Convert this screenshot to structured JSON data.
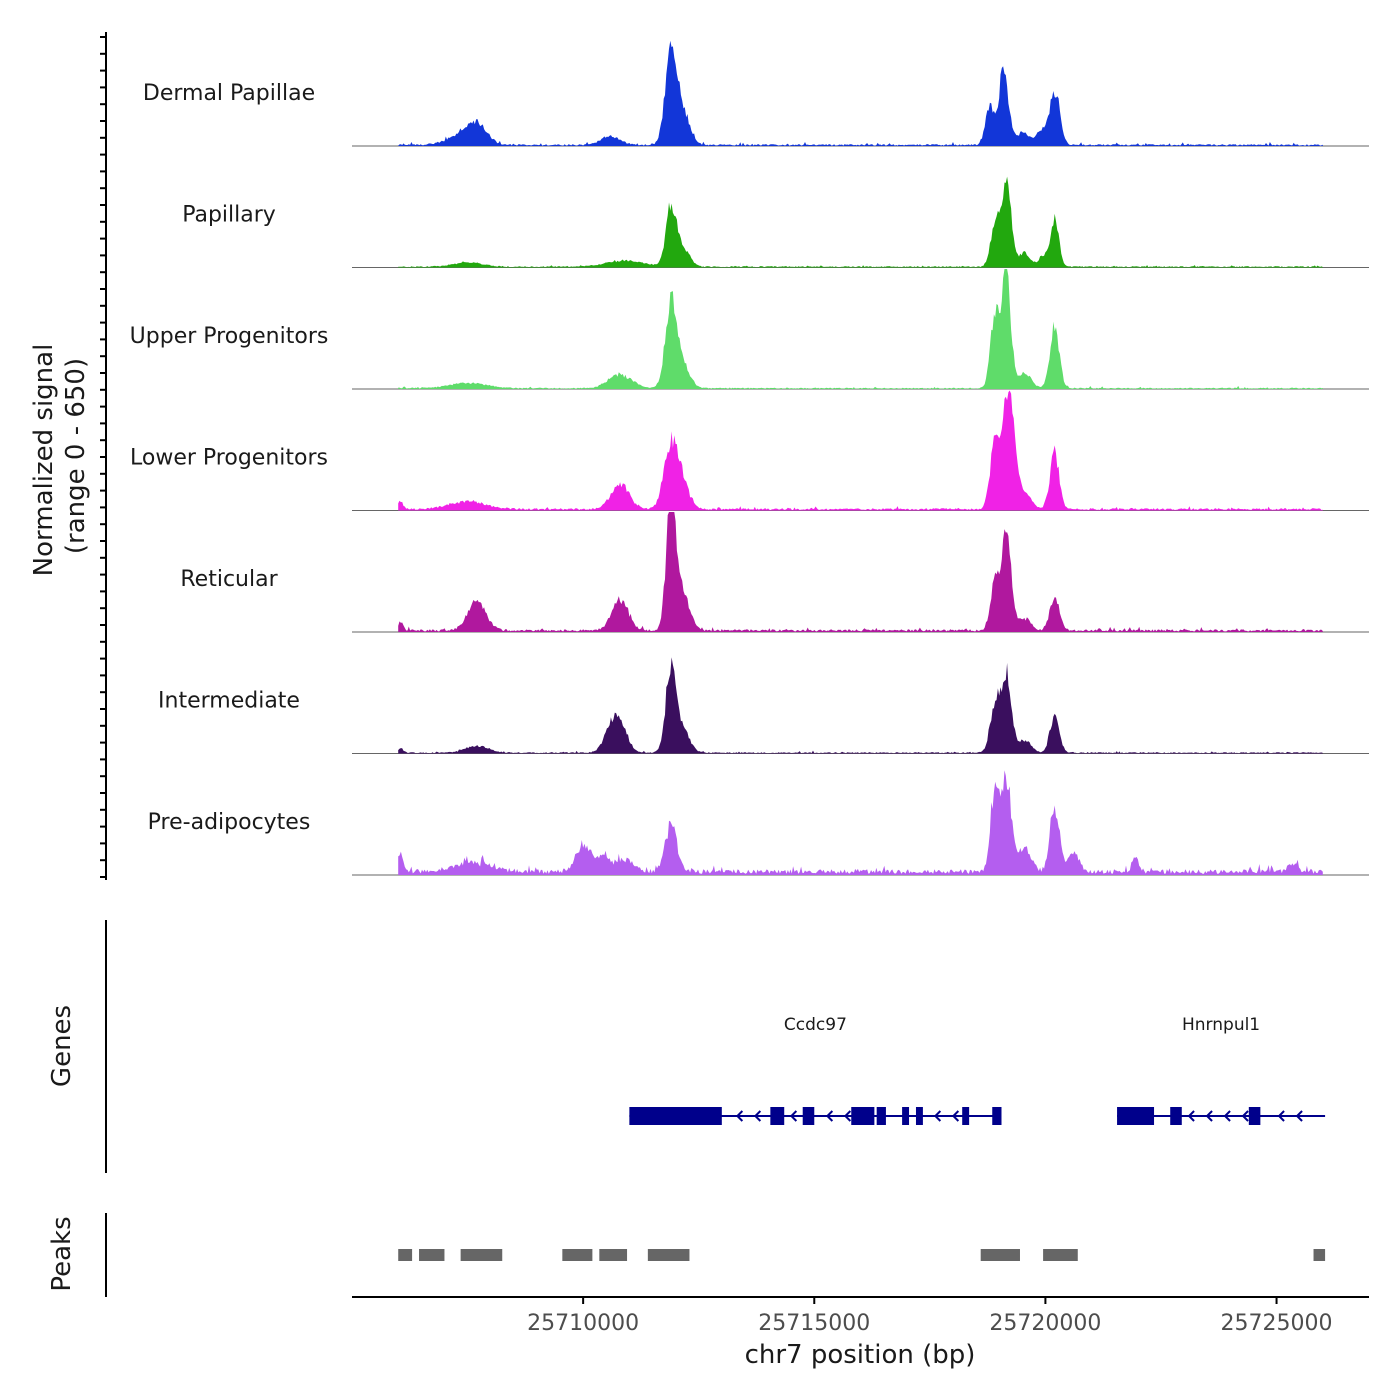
{
  "chart_data": {
    "type": "area",
    "title": "",
    "ylabel": "Normalized signal",
    "ylabel_sub": "(range 0 - 650)",
    "ylim": [
      0,
      650
    ],
    "xlabel": "chr7 position (bp)",
    "xlim": [
      25705000,
      25727000
    ],
    "xticks": [
      {
        "value": 25710000,
        "label": "25710000"
      },
      {
        "value": 25715000,
        "label": "25715000"
      },
      {
        "value": 25720000,
        "label": "25720000"
      },
      {
        "value": 25725000,
        "label": "25725000"
      }
    ],
    "track_range": [
      25706000,
      25726000
    ],
    "series": [
      {
        "name": "Dermal Papillae",
        "color": "#1236d8",
        "baseline": 8,
        "peaks": [
          [
            25707700,
            130,
            220
          ],
          [
            25707300,
            50,
            300
          ],
          [
            25711900,
            620,
            120
          ],
          [
            25712150,
            220,
            150
          ],
          [
            25718800,
            260,
            90
          ],
          [
            25719100,
            500,
            100
          ],
          [
            25719500,
            80,
            150
          ],
          [
            25720200,
            360,
            110
          ],
          [
            25719900,
            90,
            100
          ],
          [
            25710600,
            60,
            200
          ]
        ]
      },
      {
        "name": "Papillary",
        "color": "#22a80e",
        "baseline": 6,
        "peaks": [
          [
            25711900,
            380,
            110
          ],
          [
            25712150,
            120,
            150
          ],
          [
            25718900,
            250,
            90
          ],
          [
            25719150,
            560,
            110
          ],
          [
            25719550,
            90,
            120
          ],
          [
            25720200,
            320,
            90
          ],
          [
            25719950,
            70,
            90
          ],
          [
            25707500,
            30,
            300
          ],
          [
            25710900,
            40,
            400
          ]
        ]
      },
      {
        "name": "Upper Progenitors",
        "color": "#5fdc6a",
        "baseline": 6,
        "peaks": [
          [
            25711900,
            560,
            120
          ],
          [
            25712150,
            150,
            150
          ],
          [
            25710800,
            90,
            250
          ],
          [
            25718900,
            480,
            90
          ],
          [
            25719150,
            750,
            100
          ],
          [
            25719550,
            100,
            140
          ],
          [
            25720200,
            400,
            100
          ],
          [
            25707500,
            35,
            400
          ]
        ]
      },
      {
        "name": "Lower Progenitors",
        "color": "#f022e6",
        "baseline": 10,
        "peaks": [
          [
            25711900,
            410,
            150
          ],
          [
            25712150,
            150,
            150
          ],
          [
            25710800,
            160,
            200
          ],
          [
            25718900,
            400,
            100
          ],
          [
            25719200,
            750,
            130
          ],
          [
            25719550,
            100,
            140
          ],
          [
            25720200,
            370,
            100
          ],
          [
            25707500,
            50,
            400
          ],
          [
            25706050,
            50,
            60
          ]
        ]
      },
      {
        "name": "Reticular",
        "color": "#b0189e",
        "baseline": 12,
        "peaks": [
          [
            25707700,
            180,
            200
          ],
          [
            25711900,
            850,
            100
          ],
          [
            25712150,
            250,
            150
          ],
          [
            25710800,
            200,
            180
          ],
          [
            25718900,
            280,
            90
          ],
          [
            25719150,
            600,
            110
          ],
          [
            25719550,
            80,
            140
          ],
          [
            25720200,
            230,
            100
          ],
          [
            25706050,
            50,
            60
          ]
        ]
      },
      {
        "name": "Intermediate",
        "color": "#3a0f5e",
        "baseline": 6,
        "peaks": [
          [
            25711900,
            560,
            110
          ],
          [
            25712150,
            150,
            150
          ],
          [
            25710800,
            170,
            160
          ],
          [
            25710600,
            130,
            160
          ],
          [
            25718900,
            300,
            100
          ],
          [
            25719150,
            520,
            110
          ],
          [
            25719550,
            80,
            140
          ],
          [
            25720200,
            240,
            100
          ],
          [
            25707700,
            45,
            250
          ],
          [
            25706050,
            30,
            60
          ]
        ]
      },
      {
        "name": "Pre-adipocytes",
        "color": "#b45eef",
        "baseline": 25,
        "peaks": [
          [
            25711900,
            300,
            130
          ],
          [
            25710000,
            170,
            150
          ],
          [
            25710400,
            100,
            150
          ],
          [
            25710900,
            80,
            200
          ],
          [
            25718900,
            470,
            90
          ],
          [
            25719150,
            580,
            110
          ],
          [
            25719550,
            150,
            140
          ],
          [
            25720200,
            430,
            100
          ],
          [
            25720600,
            120,
            120
          ],
          [
            25706050,
            120,
            60
          ],
          [
            25721950,
            110,
            70
          ],
          [
            25725350,
            60,
            100
          ],
          [
            25707600,
            60,
            400
          ]
        ]
      }
    ],
    "genes": [
      {
        "name": "Ccdc97",
        "start": 25711000,
        "end": 25719050,
        "strand": "-",
        "exons": [
          [
            25711000,
            25713000
          ],
          [
            25714050,
            25714350
          ],
          [
            25714750,
            25715000
          ],
          [
            25715800,
            25716300
          ],
          [
            25716350,
            25716550
          ],
          [
            25716900,
            25717050
          ],
          [
            25717200,
            25717350
          ],
          [
            25718200,
            25718350
          ],
          [
            25718850,
            25719050
          ]
        ]
      },
      {
        "name": "Hnrnpul1",
        "start": 25721550,
        "end": 25726050,
        "strand": "-",
        "exons": [
          [
            25721550,
            25722350
          ],
          [
            25722700,
            25722950
          ],
          [
            25724400,
            25724650
          ]
        ]
      }
    ],
    "peaks": [
      [
        25706000,
        25706300
      ],
      [
        25706450,
        25707000
      ],
      [
        25707350,
        25708250
      ],
      [
        25709550,
        25710200
      ],
      [
        25710350,
        25710950
      ],
      [
        25711400,
        25712300
      ],
      [
        25718600,
        25719450
      ],
      [
        25719950,
        25720700
      ],
      [
        25725800,
        25726050
      ]
    ],
    "panels": {
      "genes_label": "Genes",
      "peaks_label": "Peaks"
    }
  }
}
